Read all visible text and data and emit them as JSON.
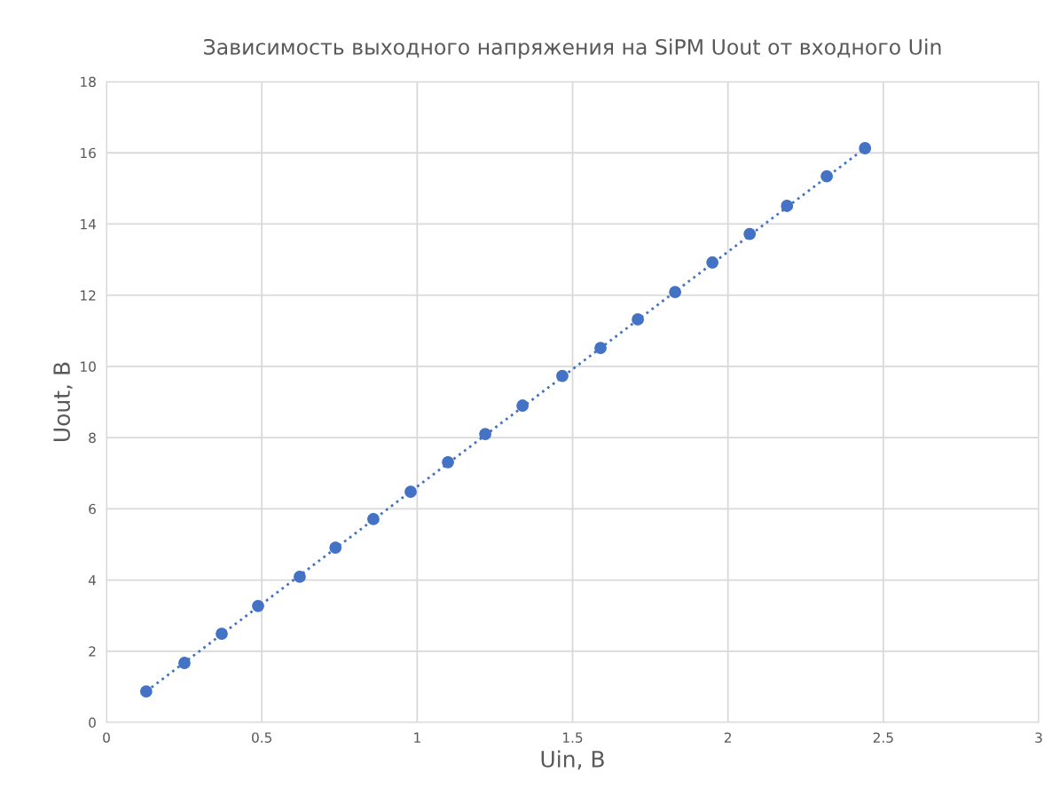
{
  "chart_data": {
    "type": "scatter",
    "title": "Зависимость выходного напряжения на SiPM Uout от входного Uin",
    "xlabel": "Uin, В",
    "ylabel": "Uout, В",
    "series": [
      {
        "type": "line",
        "color": "#4472c4",
        "line_style": "dotted",
        "marker": "none",
        "x": [
          0.128,
          2.441
        ],
        "values": [
          0.87,
          16.13
        ]
      },
      {
        "color": "#4472c4",
        "marker": "circle",
        "x": [
          0.128,
          0.251,
          0.371,
          0.488,
          0.622,
          0.737,
          0.859,
          0.979,
          1.099,
          1.219,
          1.339,
          1.467,
          1.59,
          1.71,
          1.83,
          1.95,
          2.07,
          2.19,
          2.318,
          2.441
        ],
        "values": [
          0.87,
          1.67,
          2.49,
          3.27,
          4.09,
          4.91,
          5.71,
          6.48,
          7.31,
          8.1,
          8.9,
          9.73,
          10.52,
          11.32,
          12.09,
          12.92,
          13.72,
          14.51,
          15.34,
          16.13
        ]
      }
    ],
    "xlim": [
      0,
      3
    ],
    "xticks": [
      0,
      0.5,
      1,
      1.5,
      2,
      2.5,
      3
    ],
    "ylim": [
      0,
      18
    ],
    "yticks": [
      0,
      2,
      4,
      6,
      8,
      10,
      12,
      14,
      16,
      18
    ],
    "grid": true
  }
}
